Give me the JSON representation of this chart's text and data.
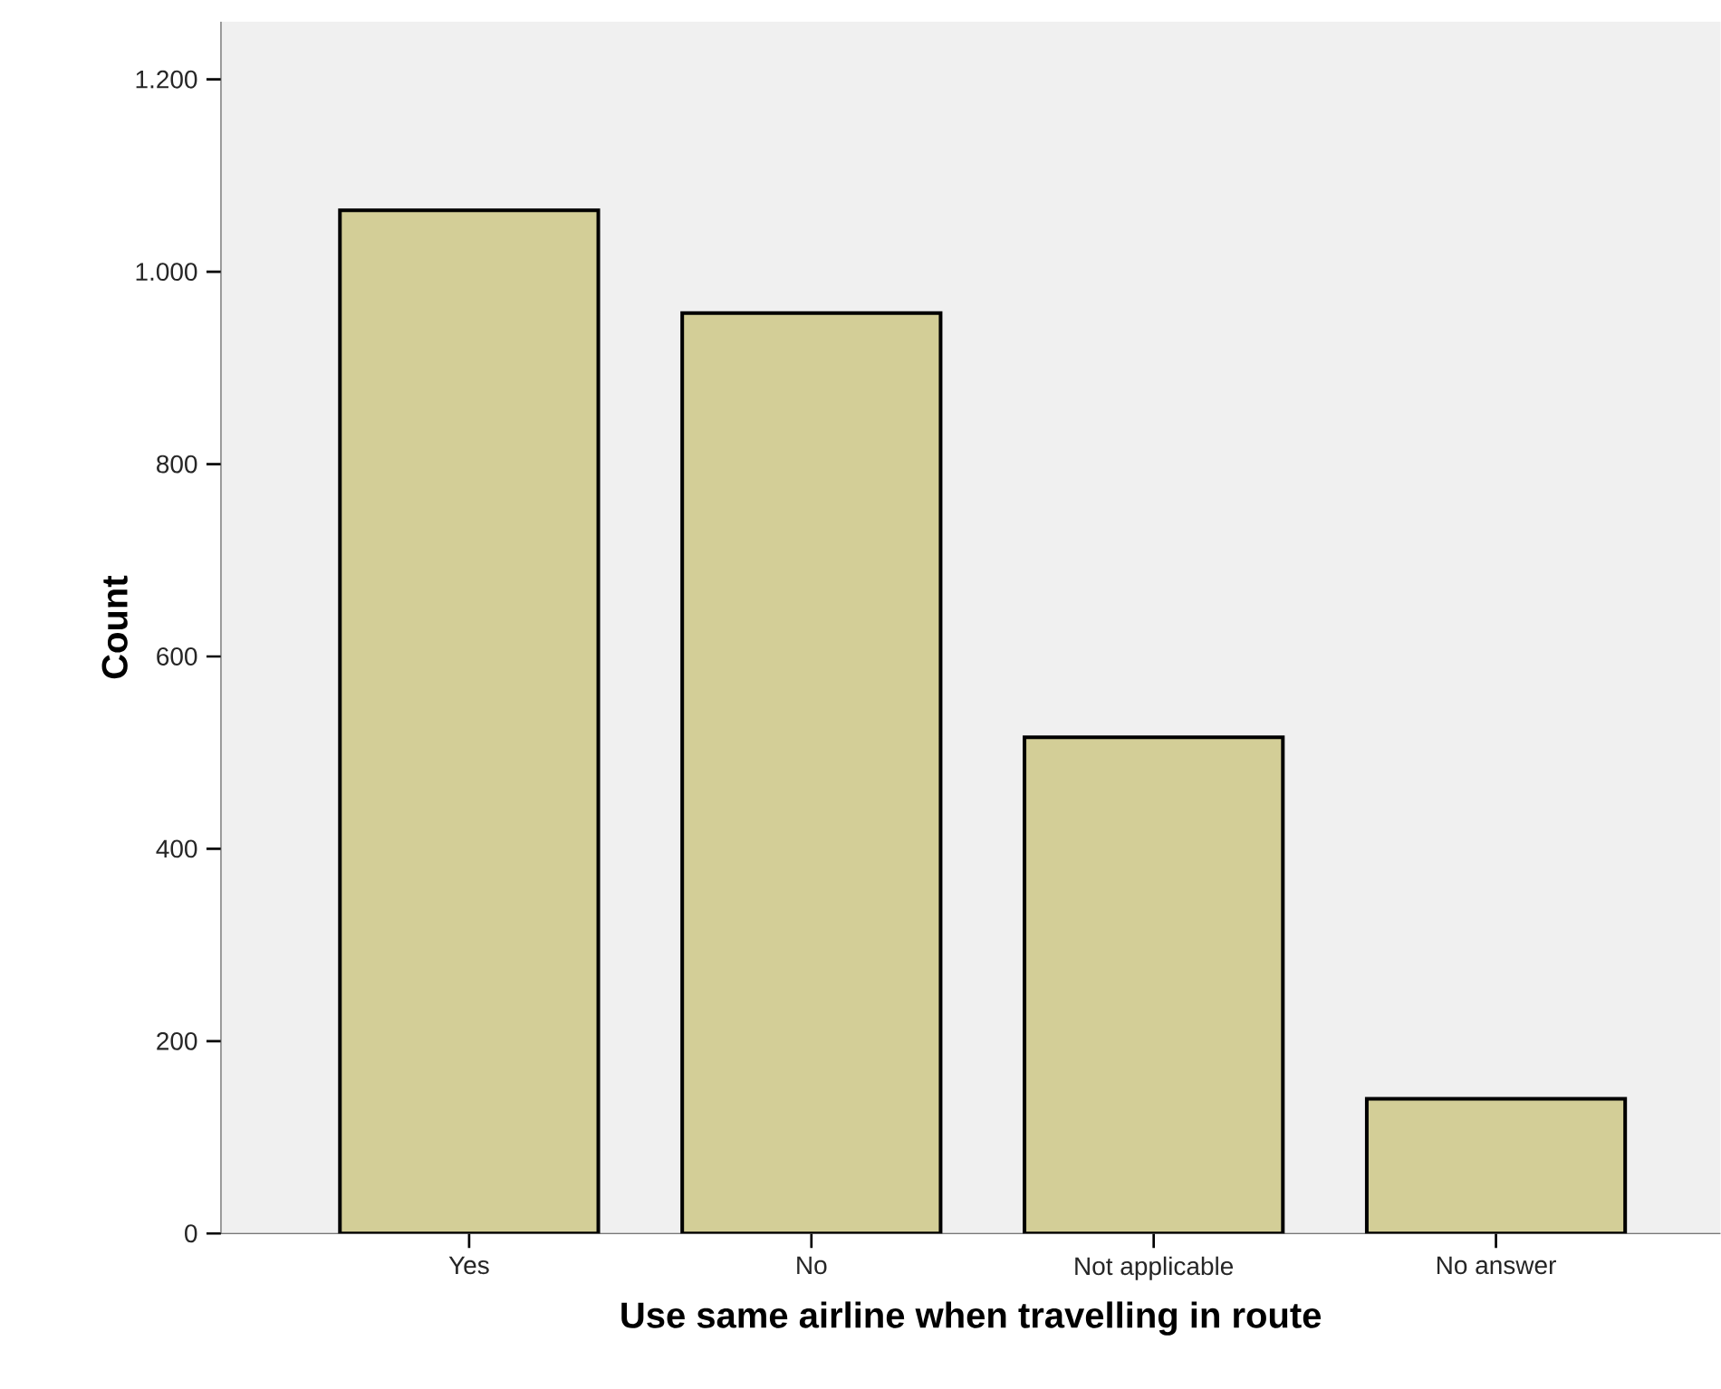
{
  "chart_data": {
    "type": "bar",
    "xlabel": "Use same airline when travelling in route",
    "ylabel": "Count",
    "categories": [
      "Yes",
      "No",
      "Not applicable",
      "No answer"
    ],
    "values": [
      1064,
      957,
      516,
      140
    ],
    "color": "#d3ce97",
    "ylim": [
      0,
      1260
    ],
    "yticks": [
      0,
      200,
      400,
      600,
      800,
      {
        "value": 1000,
        "label": "1.000"
      },
      {
        "value": 1200,
        "label": "1.200"
      }
    ],
    "grid": false
  }
}
